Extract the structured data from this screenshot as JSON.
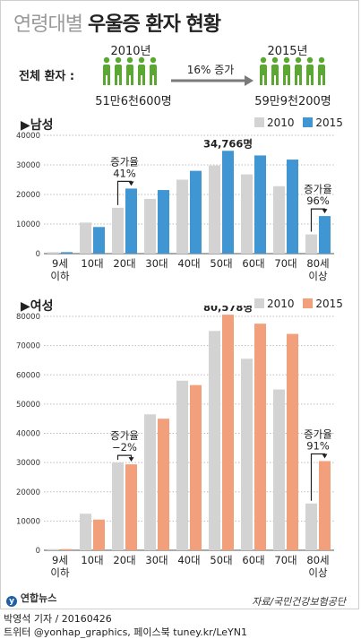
{
  "title_light": "연령대별",
  "title_bold": "우울증 환자 현황",
  "summary": {
    "label": "전체 환자 :",
    "year_start": "2010년",
    "total_start": "51만6천600명",
    "arrow_text": "16% 증가",
    "year_end": "2015년",
    "total_end": "59만9천200명"
  },
  "colors": {
    "y2010": "#d3d3d3",
    "male2015": "#3f96d2",
    "female2015": "#f2a07b",
    "person": "#5aa832"
  },
  "logo_text": "연합뉴스",
  "source": "자료/국민건강보험공단",
  "byline1": "박영석 기자 / 20160426",
  "byline2": "트위터 @yonhap_graphics, 페이스북 tuney.kr/LeYN1",
  "chart_data": [
    {
      "type": "bar",
      "section_label": "▶남성",
      "categories": [
        "9세 이하",
        "10대",
        "20대",
        "30대",
        "40대",
        "50대",
        "60대",
        "70대",
        "80세 이상"
      ],
      "series": [
        {
          "name": "2010",
          "values": [
            500,
            10500,
            15500,
            18500,
            25000,
            29800,
            26800,
            22800,
            6500
          ]
        },
        {
          "name": "2015",
          "values": [
            500,
            9000,
            22000,
            21500,
            28000,
            34766,
            33200,
            31800,
            12700
          ]
        }
      ],
      "ylim": [
        0,
        40000
      ],
      "yticks": [
        "0",
        "10000",
        "20000",
        "30000",
        "40000"
      ],
      "peak_label": "34,766명",
      "annotations": [
        {
          "text1": "증가율",
          "text2": "41%"
        },
        {
          "text1": "증가율",
          "text2": "96%"
        }
      ]
    },
    {
      "type": "bar",
      "section_label": "▶여성",
      "categories": [
        "9세 이하",
        "10대",
        "20대",
        "30대",
        "40대",
        "50대",
        "60대",
        "70대",
        "80세 이상"
      ],
      "series": [
        {
          "name": "2010",
          "values": [
            400,
            12500,
            30000,
            46500,
            58000,
            75000,
            65500,
            55000,
            16000
          ]
        },
        {
          "name": "2015",
          "values": [
            400,
            10500,
            29400,
            45000,
            56500,
            80578,
            77500,
            74000,
            30500
          ]
        }
      ],
      "ylim": [
        0,
        80000
      ],
      "yticks": [
        "0",
        "10000",
        "20000",
        "30000",
        "40000",
        "50000",
        "60000",
        "70000",
        "80000"
      ],
      "peak_label": "80,578명",
      "annotations": [
        {
          "text1": "증가율",
          "text2": "−2%"
        },
        {
          "text1": "증가율",
          "text2": "91%"
        }
      ]
    }
  ]
}
